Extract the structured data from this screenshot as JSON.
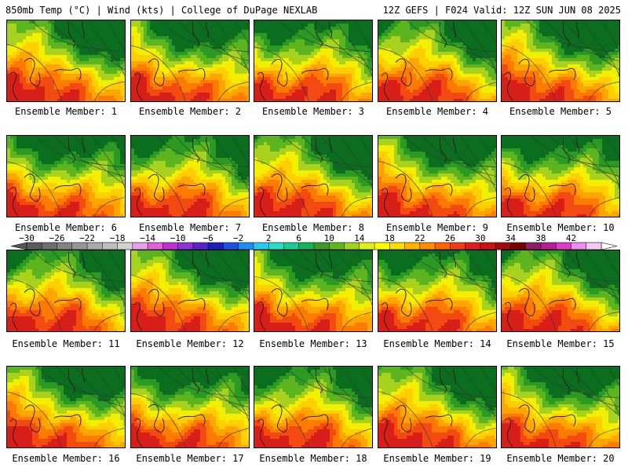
{
  "header": {
    "left": "850mb Temp (°C) | Wind (kts) | College of DuPage NEXLAB",
    "right": "12Z GEFS | F024 Valid: 12Z SUN JUN 08 2025"
  },
  "members": [
    "Ensemble Member: 1",
    "Ensemble Member: 2",
    "Ensemble Member: 3",
    "Ensemble Member: 4",
    "Ensemble Member: 5",
    "Ensemble Member: 6",
    "Ensemble Member: 7",
    "Ensemble Member: 8",
    "Ensemble Member: 9",
    "Ensemble Member: 10",
    "Ensemble Member: 11",
    "Ensemble Member: 12",
    "Ensemble Member: 13",
    "Ensemble Member: 14",
    "Ensemble Member: 15",
    "Ensemble Member: 16",
    "Ensemble Member: 17",
    "Ensemble Member: 18",
    "Ensemble Member: 19",
    "Ensemble Member: 20"
  ],
  "colorbar": {
    "labels": [
      "-30",
      "-26",
      "-22",
      "-18",
      "-14",
      "-10",
      "-6",
      "-2",
      "2",
      "6",
      "10",
      "14",
      "18",
      "22",
      "26",
      "30",
      "34",
      "38",
      "42"
    ],
    "colors": [
      "#5a5a5a",
      "#6e6e6e",
      "#828282",
      "#969696",
      "#aaaaaa",
      "#bebebe",
      "#d2d2d2",
      "#e6a0e6",
      "#e060e0",
      "#c030d0",
      "#8e2fd8",
      "#5a23c8",
      "#1e1ebe",
      "#1e50e6",
      "#1e8cf0",
      "#28c8f0",
      "#2adcc8",
      "#1ec896",
      "#14b45a",
      "#3c9b28",
      "#64b41e",
      "#a0d21e",
      "#dcf01e",
      "#ffff00",
      "#ffdc00",
      "#ffb400",
      "#ff8c00",
      "#ff6400",
      "#f03c14",
      "#dc1e1e",
      "#c81414",
      "#a00a0a",
      "#780000",
      "#8c1e64",
      "#b41e96",
      "#dc3cc8",
      "#f08cf0",
      "#f5c8f5"
    ],
    "palette": [
      "#0a6e1e",
      "#2a9a22",
      "#5cb41e",
      "#a8d21e",
      "#f2f000",
      "#ffcf00",
      "#ffa500",
      "#ff7a00",
      "#f24a10",
      "#d81e18"
    ]
  }
}
